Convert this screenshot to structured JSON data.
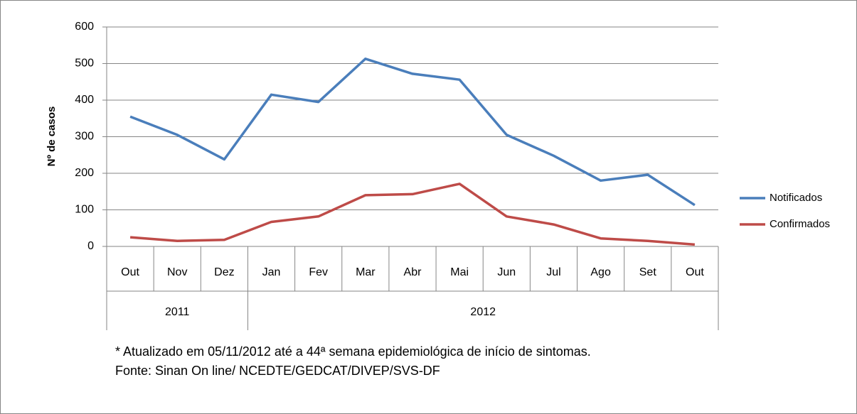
{
  "chart_data": {
    "type": "line",
    "y_label": "Nº de casos",
    "category_groups": [
      {
        "label": "2011",
        "categories": [
          "Out",
          "Nov",
          "Dez"
        ]
      },
      {
        "label": "2012",
        "categories": [
          "Jan",
          "Fev",
          "Mar",
          "Abr",
          "Mai",
          "Jun",
          "Jul",
          "Ago",
          "Set",
          "Out"
        ]
      }
    ],
    "series": [
      {
        "name": "Notificados",
        "color": "#4a7ebb",
        "values": [
          355,
          305,
          238,
          415,
          395,
          513,
          472,
          456,
          305,
          248,
          180,
          196,
          113
        ]
      },
      {
        "name": "Confirmados",
        "color": "#be4b48",
        "values": [
          25,
          15,
          18,
          67,
          82,
          140,
          143,
          171,
          82,
          60,
          22,
          15,
          5
        ]
      }
    ],
    "ylim": [
      0,
      600
    ],
    "yticks": [
      0,
      100,
      200,
      300,
      400,
      500,
      600
    ],
    "grid": true,
    "legend": "right",
    "notes": [
      "* Atualizado em 05/11/2012  até a 44ª semana epidemiológica de início de sintomas.",
      "Fonte: Sinan On line/ NCEDTE/GEDCAT/DIVEP/SVS-DF"
    ]
  }
}
